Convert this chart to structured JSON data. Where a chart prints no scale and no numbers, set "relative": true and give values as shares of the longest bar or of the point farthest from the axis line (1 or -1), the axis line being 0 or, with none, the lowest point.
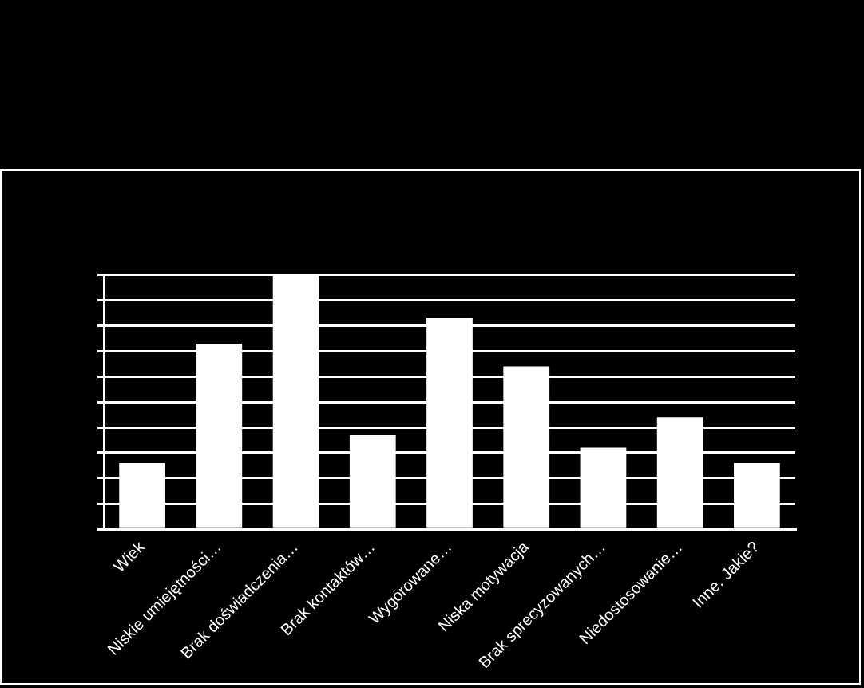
{
  "chart_data": {
    "type": "bar",
    "relative": true,
    "categories": [
      "Wiek",
      "Niskie umiejętności…",
      "Brak doświadczenia…",
      "Brak kontaktów…",
      "Wygórowane…",
      "Niska motywacja",
      "Brak sprecyzowanych…",
      "Niedostosowanie…",
      "Inne. Jakie?"
    ],
    "values": [
      0.26,
      0.73,
      1,
      0.37,
      0.83,
      0.64,
      0.32,
      0.44,
      0.26
    ],
    "color": "#ffffff",
    "grid": "y",
    "legend": false
  }
}
